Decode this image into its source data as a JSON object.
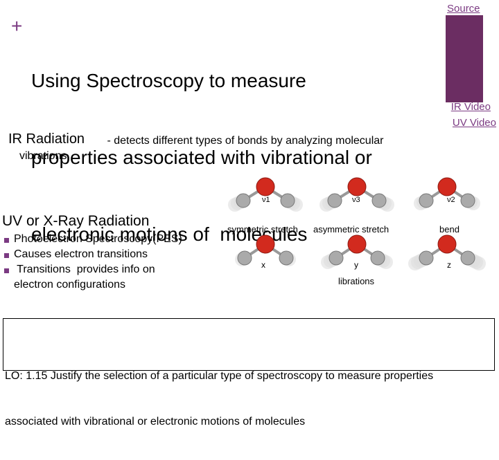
{
  "header": {
    "marker": "+",
    "title_lines": [
      "Using Spectroscopy to measure",
      "properties associated with vibrational or",
      "electronic motions of  molecules"
    ]
  },
  "links": {
    "source": "Source",
    "ir_video": "IR Video",
    "uv_video": "UV Video"
  },
  "ir": {
    "heading": "IR Radiation",
    "text": " - detects different types of bonds by analyzing molecular",
    "text_cont": "vibrations"
  },
  "uv": {
    "heading": "UV or X-Ray Radiation",
    "bullets": [
      "Photoelectron Spectroscopy(PES)",
      "Causes electron transitions",
      " Transitions  provides info on"
    ],
    "bullet_cont": "electron configurations"
  },
  "figure": {
    "modes": [
      "ν1",
      "ν3",
      "ν2"
    ],
    "mode_names": [
      "symmetric stretch",
      "asymmetric stretch",
      "bend"
    ],
    "axes": [
      "x",
      "y",
      "z"
    ],
    "caption": "librations"
  },
  "objective": {
    "lines": [
      "LO: 1.15 Justify the selection of a particular type of spectroscopy to measure properties",
      "associated with vibrational or electronic motions of molecules"
    ]
  }
}
